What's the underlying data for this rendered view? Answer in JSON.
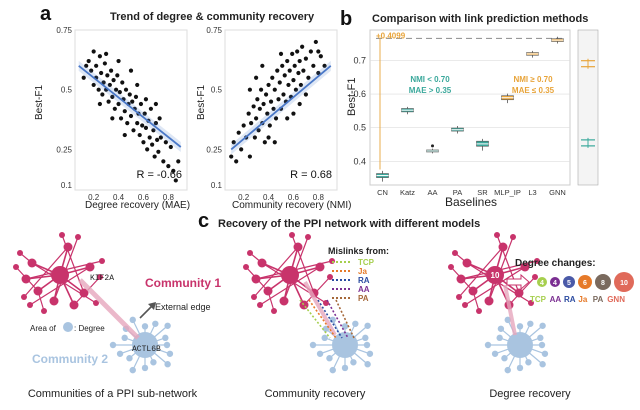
{
  "panel_a": {
    "letter": "a",
    "title": "Trend of degree & community recovery"
  },
  "panel_b": {
    "letter": "b",
    "title": "Comparison with link prediction methods"
  },
  "panel_c": {
    "letter": "c",
    "title": "Recovery of the PPI network with different models",
    "sub1": {
      "community1": "Community 1",
      "community2": "Community 2",
      "gene1": "KIF2A",
      "gene2": "ACTL6B",
      "external_edge": "External edge",
      "area_of": "Area of",
      "degree_suffix": ": Degree",
      "caption": "Communities of a PPI sub-network"
    },
    "sub2": {
      "mislinks_title": "Mislinks from:",
      "legend": [
        {
          "label": "TCP",
          "color": "#a6cf4e"
        },
        {
          "label": "Ja",
          "color": "#e67a29"
        },
        {
          "label": "RA",
          "color": "#2b4ba0"
        },
        {
          "label": "AA",
          "color": "#7b2f92"
        },
        {
          "label": "PA",
          "color": "#a5683a"
        }
      ],
      "caption": "Community recovery"
    },
    "sub3": {
      "degree_title": "Degree changes:",
      "hub_value": "10",
      "circles": [
        {
          "value": "4",
          "color": "#a6cf4e"
        },
        {
          "value": "4",
          "color": "#7b2f92"
        },
        {
          "value": "5",
          "color": "#4a5aa8"
        },
        {
          "value": "6",
          "color": "#e67a29"
        },
        {
          "value": "8",
          "color": "#7a6a5e"
        },
        {
          "value": "10",
          "color": "#e06a5a"
        }
      ],
      "labels": [
        {
          "label": "TCP",
          "color": "#a6cf4e"
        },
        {
          "label": "AA",
          "color": "#7b2f92"
        },
        {
          "label": "RA",
          "color": "#2b4ba0"
        },
        {
          "label": "Ja",
          "color": "#e67a29"
        },
        {
          "label": "PA",
          "color": "#7a6a5e"
        },
        {
          "label": "GNN",
          "color": "#e06a5a"
        }
      ],
      "caption": "Degree recovery"
    }
  },
  "colors": {
    "scatter_point": "#111111",
    "trend_line": "#4a78c8",
    "teal": "#3aa89b",
    "orange": "#e8a43a",
    "pink": "#c8336b",
    "light_blue": "#a9c4e0"
  },
  "chart_data": [
    {
      "type": "scatter",
      "xlabel": "Degree recovery (MAE)",
      "ylabel": "Best-F1",
      "xlim": [
        0.05,
        0.95
      ],
      "ylim": [
        0.08,
        0.75
      ],
      "xticks": [
        "0.2",
        "0.4",
        "0.6",
        "0.8"
      ],
      "yticks": [
        "0.1",
        "0.25",
        "0.5",
        "0.75"
      ],
      "ytick_values": [
        0.1,
        0.25,
        0.5,
        0.75
      ],
      "annotation": "R = -0.66",
      "trend": [
        [
          0.08,
          0.6
        ],
        [
          0.9,
          0.26
        ]
      ],
      "points": [
        [
          0.12,
          0.55
        ],
        [
          0.14,
          0.6
        ],
        [
          0.16,
          0.62
        ],
        [
          0.18,
          0.58
        ],
        [
          0.2,
          0.52
        ],
        [
          0.22,
          0.6
        ],
        [
          0.22,
          0.55
        ],
        [
          0.24,
          0.5
        ],
        [
          0.25,
          0.64
        ],
        [
          0.26,
          0.57
        ],
        [
          0.27,
          0.48
        ],
        [
          0.28,
          0.53
        ],
        [
          0.29,
          0.61
        ],
        [
          0.3,
          0.5
        ],
        [
          0.31,
          0.56
        ],
        [
          0.32,
          0.45
        ],
        [
          0.33,
          0.52
        ],
        [
          0.34,
          0.58
        ],
        [
          0.35,
          0.47
        ],
        [
          0.36,
          0.54
        ],
        [
          0.37,
          0.42
        ],
        [
          0.38,
          0.5
        ],
        [
          0.39,
          0.56
        ],
        [
          0.4,
          0.44
        ],
        [
          0.41,
          0.49
        ],
        [
          0.42,
          0.38
        ],
        [
          0.43,
          0.53
        ],
        [
          0.44,
          0.46
        ],
        [
          0.45,
          0.41
        ],
        [
          0.46,
          0.5
        ],
        [
          0.47,
          0.36
        ],
        [
          0.48,
          0.44
        ],
        [
          0.49,
          0.48
        ],
        [
          0.5,
          0.39
        ],
        [
          0.51,
          0.45
        ],
        [
          0.52,
          0.33
        ],
        [
          0.53,
          0.42
        ],
        [
          0.54,
          0.47
        ],
        [
          0.55,
          0.36
        ],
        [
          0.56,
          0.4
        ],
        [
          0.57,
          0.31
        ],
        [
          0.58,
          0.44
        ],
        [
          0.59,
          0.35
        ],
        [
          0.6,
          0.28
        ],
        [
          0.61,
          0.4
        ],
        [
          0.62,
          0.34
        ],
        [
          0.63,
          0.25
        ],
        [
          0.64,
          0.37
        ],
        [
          0.65,
          0.3
        ],
        [
          0.66,
          0.42
        ],
        [
          0.67,
          0.27
        ],
        [
          0.68,
          0.33
        ],
        [
          0.69,
          0.22
        ],
        [
          0.7,
          0.36
        ],
        [
          0.71,
          0.29
        ],
        [
          0.72,
          0.24
        ],
        [
          0.73,
          0.38
        ],
        [
          0.74,
          0.3
        ],
        [
          0.76,
          0.2
        ],
        [
          0.78,
          0.28
        ],
        [
          0.8,
          0.18
        ],
        [
          0.82,
          0.26
        ],
        [
          0.84,
          0.16
        ],
        [
          0.86,
          0.12
        ],
        [
          0.88,
          0.2
        ],
        [
          0.3,
          0.65
        ],
        [
          0.4,
          0.62
        ],
        [
          0.5,
          0.58
        ],
        [
          0.45,
          0.31
        ],
        [
          0.35,
          0.38
        ],
        [
          0.55,
          0.52
        ],
        [
          0.62,
          0.46
        ],
        [
          0.25,
          0.44
        ],
        [
          0.7,
          0.44
        ],
        [
          0.2,
          0.66
        ]
      ]
    },
    {
      "type": "scatter",
      "xlabel": "Community recovery (NMI)",
      "ylabel": "Best-F1",
      "xlim": [
        0.05,
        0.95
      ],
      "ylim": [
        0.08,
        0.75
      ],
      "xticks": [
        "0.2",
        "0.4",
        "0.6",
        "0.8"
      ],
      "yticks": [
        "0.1",
        "0.25",
        "0.5",
        "0.75"
      ],
      "ytick_values": [
        0.1,
        0.25,
        0.5,
        0.75
      ],
      "annotation": "R = 0.68",
      "trend": [
        [
          0.1,
          0.25
        ],
        [
          0.9,
          0.6
        ]
      ],
      "points": [
        [
          0.1,
          0.22
        ],
        [
          0.12,
          0.28
        ],
        [
          0.14,
          0.2
        ],
        [
          0.16,
          0.32
        ],
        [
          0.18,
          0.25
        ],
        [
          0.2,
          0.35
        ],
        [
          0.22,
          0.3
        ],
        [
          0.24,
          0.4
        ],
        [
          0.25,
          0.22
        ],
        [
          0.26,
          0.36
        ],
        [
          0.28,
          0.43
        ],
        [
          0.29,
          0.3
        ],
        [
          0.3,
          0.38
        ],
        [
          0.31,
          0.46
        ],
        [
          0.32,
          0.33
        ],
        [
          0.33,
          0.42
        ],
        [
          0.34,
          0.5
        ],
        [
          0.35,
          0.36
        ],
        [
          0.36,
          0.44
        ],
        [
          0.37,
          0.28
        ],
        [
          0.38,
          0.48
        ],
        [
          0.39,
          0.4
        ],
        [
          0.4,
          0.52
        ],
        [
          0.41,
          0.35
        ],
        [
          0.42,
          0.45
        ],
        [
          0.43,
          0.55
        ],
        [
          0.44,
          0.42
        ],
        [
          0.45,
          0.5
        ],
        [
          0.46,
          0.38
        ],
        [
          0.47,
          0.58
        ],
        [
          0.48,
          0.46
        ],
        [
          0.49,
          0.53
        ],
        [
          0.5,
          0.42
        ],
        [
          0.51,
          0.6
        ],
        [
          0.52,
          0.48
        ],
        [
          0.53,
          0.56
        ],
        [
          0.54,
          0.45
        ],
        [
          0.55,
          0.62
        ],
        [
          0.56,
          0.52
        ],
        [
          0.57,
          0.58
        ],
        [
          0.58,
          0.47
        ],
        [
          0.59,
          0.65
        ],
        [
          0.6,
          0.54
        ],
        [
          0.61,
          0.6
        ],
        [
          0.62,
          0.5
        ],
        [
          0.63,
          0.66
        ],
        [
          0.64,
          0.57
        ],
        [
          0.65,
          0.62
        ],
        [
          0.66,
          0.52
        ],
        [
          0.67,
          0.68
        ],
        [
          0.68,
          0.58
        ],
        [
          0.7,
          0.63
        ],
        [
          0.72,
          0.55
        ],
        [
          0.74,
          0.66
        ],
        [
          0.76,
          0.6
        ],
        [
          0.78,
          0.7
        ],
        [
          0.8,
          0.57
        ],
        [
          0.82,
          0.64
        ],
        [
          0.85,
          0.6
        ],
        [
          0.3,
          0.55
        ],
        [
          0.4,
          0.3
        ],
        [
          0.5,
          0.65
        ],
        [
          0.6,
          0.4
        ],
        [
          0.35,
          0.6
        ],
        [
          0.45,
          0.28
        ],
        [
          0.55,
          0.38
        ],
        [
          0.7,
          0.48
        ],
        [
          0.25,
          0.5
        ],
        [
          0.65,
          0.44
        ],
        [
          0.8,
          0.66
        ]
      ]
    },
    {
      "type": "box",
      "xlabel": "Baselines",
      "ylabel": "Best-F1",
      "ylim": [
        0.33,
        0.79
      ],
      "yticks": [
        "0.4",
        "0.5",
        "0.6",
        "0.7"
      ],
      "ytick_values": [
        0.4,
        0.5,
        0.6,
        0.7
      ],
      "categories": [
        "CN",
        "Katz",
        "AA",
        "PA",
        "SR",
        "MLP_IP",
        "L3",
        "GNN"
      ],
      "boxes": [
        {
          "q1": 0.352,
          "median": 0.358,
          "q3": 0.364,
          "whislo": 0.34,
          "whishi": 0.372,
          "color": "#3aa89b"
        },
        {
          "q1": 0.547,
          "median": 0.552,
          "q3": 0.557,
          "whislo": 0.54,
          "whishi": 0.562,
          "color": "#3aa89b"
        },
        {
          "q1": 0.428,
          "median": 0.431,
          "q3": 0.434,
          "whislo": 0.424,
          "whishi": 0.438,
          "color": "#3aa89b",
          "outlier": 0.446
        },
        {
          "q1": 0.49,
          "median": 0.494,
          "q3": 0.499,
          "whislo": 0.483,
          "whishi": 0.505,
          "color": "#3aa89b"
        },
        {
          "q1": 0.445,
          "median": 0.452,
          "q3": 0.46,
          "whislo": 0.432,
          "whishi": 0.467,
          "color": "#3aa89b"
        },
        {
          "q1": 0.583,
          "median": 0.589,
          "q3": 0.595,
          "whislo": 0.573,
          "whishi": 0.601,
          "color": "#e8a43a"
        },
        {
          "q1": 0.715,
          "median": 0.719,
          "q3": 0.723,
          "whislo": 0.708,
          "whishi": 0.728,
          "color": "#e8a43a"
        },
        {
          "q1": 0.756,
          "median": 0.76,
          "q3": 0.764,
          "whislo": 0.75,
          "whishi": 0.77,
          "color": "#e8a43a"
        }
      ],
      "reference_line": 0.765,
      "reference_label": "+0.4099",
      "annotations": [
        {
          "text": "NMI < 0.70",
          "color": "#3aa89b"
        },
        {
          "text": "MAE > 0.35",
          "color": "#3aa89b"
        },
        {
          "text": "NMI ≥ 0.70",
          "color": "#e8a43a"
        },
        {
          "text": "MAE ≤ 0.35",
          "color": "#e8a43a"
        }
      ],
      "side_medians": [
        {
          "value": 0.69,
          "color": "#e8a43a"
        },
        {
          "value": 0.455,
          "color": "#3aa89b"
        }
      ]
    }
  ]
}
